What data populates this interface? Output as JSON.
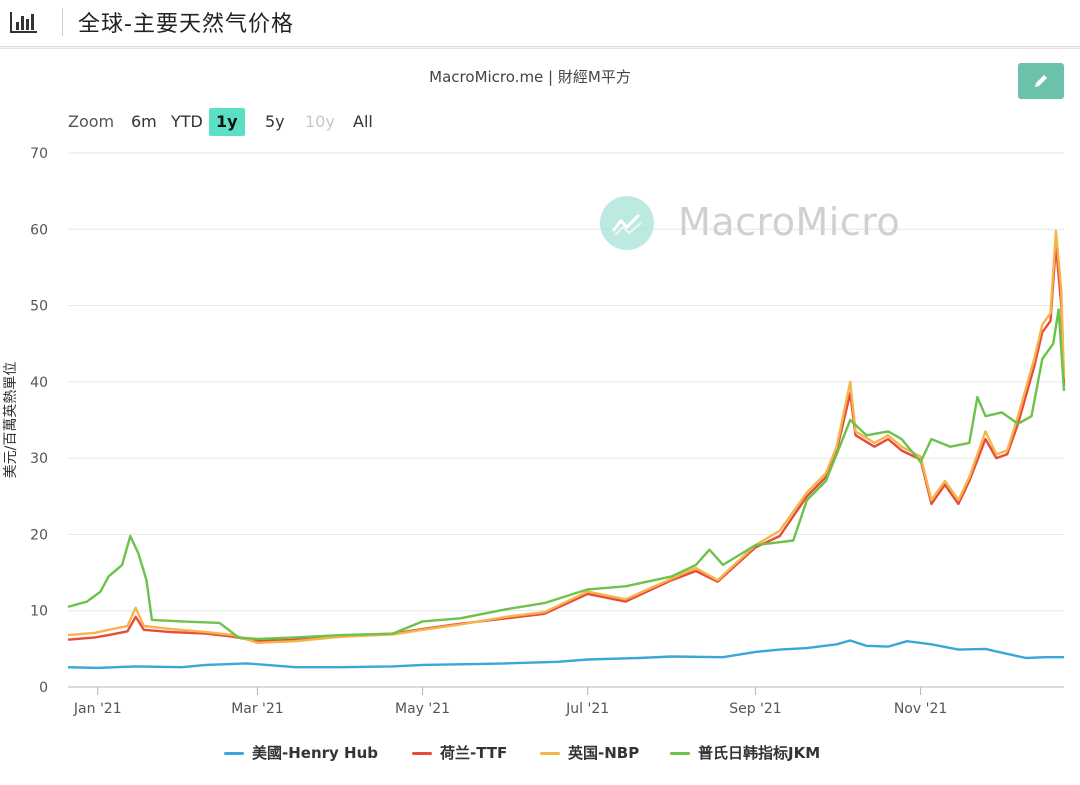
{
  "header": {
    "title": "全球-主要天然气价格",
    "icon": "bar-chart-icon"
  },
  "source": "MacroMicro.me | 財經M平方",
  "watermark": "MacroMicro",
  "zoom": {
    "label": "Zoom",
    "buttons": [
      {
        "label": "6m",
        "state": "normal"
      },
      {
        "label": "YTD",
        "state": "normal"
      },
      {
        "label": "1y",
        "state": "active"
      },
      {
        "label": "5y",
        "state": "normal"
      },
      {
        "label": "10y",
        "state": "disabled"
      },
      {
        "label": "All",
        "state": "normal"
      }
    ]
  },
  "chart_data": {
    "type": "line",
    "ylabel": "美元/百萬英熱單位",
    "ylim": [
      0,
      70
    ],
    "yticks": [
      0,
      10,
      20,
      30,
      40,
      50,
      60,
      70
    ],
    "x_range": [
      "2020-12-21",
      "2021-12-24"
    ],
    "xticks": [
      {
        "date": "2021-01-01",
        "label": "Jan '21"
      },
      {
        "date": "2021-03-01",
        "label": "Mar '21"
      },
      {
        "date": "2021-05-01",
        "label": "May '21"
      },
      {
        "date": "2021-07-01",
        "label": "Jul '21"
      },
      {
        "date": "2021-09-01",
        "label": "Sep '21"
      },
      {
        "date": "2021-11-01",
        "label": "Nov '21"
      }
    ],
    "grid": true,
    "legend_position": "bottom",
    "series": [
      {
        "name": "美國-Henry Hub",
        "color": "#3aa7d9",
        "points": [
          [
            "2020-12-21",
            2.6
          ],
          [
            "2021-01-01",
            2.5
          ],
          [
            "2021-01-15",
            2.7
          ],
          [
            "2021-02-01",
            2.6
          ],
          [
            "2021-02-10",
            2.9
          ],
          [
            "2021-02-25",
            3.1
          ],
          [
            "2021-03-15",
            2.6
          ],
          [
            "2021-04-01",
            2.6
          ],
          [
            "2021-04-20",
            2.7
          ],
          [
            "2021-05-01",
            2.9
          ],
          [
            "2021-05-20",
            3.0
          ],
          [
            "2021-06-01",
            3.1
          ],
          [
            "2021-06-20",
            3.3
          ],
          [
            "2021-07-01",
            3.6
          ],
          [
            "2021-07-20",
            3.8
          ],
          [
            "2021-08-01",
            4.0
          ],
          [
            "2021-08-20",
            3.9
          ],
          [
            "2021-09-01",
            4.6
          ],
          [
            "2021-09-10",
            4.9
          ],
          [
            "2021-09-20",
            5.1
          ],
          [
            "2021-10-01",
            5.6
          ],
          [
            "2021-10-06",
            6.1
          ],
          [
            "2021-10-12",
            5.4
          ],
          [
            "2021-10-20",
            5.3
          ],
          [
            "2021-10-27",
            6.0
          ],
          [
            "2021-11-05",
            5.6
          ],
          [
            "2021-11-15",
            4.9
          ],
          [
            "2021-11-25",
            5.0
          ],
          [
            "2021-12-01",
            4.5
          ],
          [
            "2021-12-10",
            3.8
          ],
          [
            "2021-12-17",
            3.9
          ],
          [
            "2021-12-24",
            3.9
          ]
        ]
      },
      {
        "name": "荷兰-TTF",
        "color": "#e84b3c",
        "points": [
          [
            "2020-12-21",
            6.2
          ],
          [
            "2020-12-31",
            6.5
          ],
          [
            "2021-01-05",
            6.8
          ],
          [
            "2021-01-12",
            7.3
          ],
          [
            "2021-01-15",
            9.2
          ],
          [
            "2021-01-18",
            7.5
          ],
          [
            "2021-01-28",
            7.2
          ],
          [
            "2021-02-10",
            7.0
          ],
          [
            "2021-02-20",
            6.6
          ],
          [
            "2021-03-01",
            6.0
          ],
          [
            "2021-03-15",
            6.2
          ],
          [
            "2021-04-01",
            6.6
          ],
          [
            "2021-04-20",
            7.0
          ],
          [
            "2021-05-01",
            7.6
          ],
          [
            "2021-05-15",
            8.3
          ],
          [
            "2021-06-01",
            9.0
          ],
          [
            "2021-06-15",
            9.6
          ],
          [
            "2021-07-01",
            12.2
          ],
          [
            "2021-07-15",
            11.2
          ],
          [
            "2021-08-01",
            14.0
          ],
          [
            "2021-08-10",
            15.2
          ],
          [
            "2021-08-18",
            13.8
          ],
          [
            "2021-09-01",
            18.3
          ],
          [
            "2021-09-10",
            19.8
          ],
          [
            "2021-09-20",
            25.0
          ],
          [
            "2021-09-27",
            27.5
          ],
          [
            "2021-10-01",
            31.0
          ],
          [
            "2021-10-06",
            38.5
          ],
          [
            "2021-10-08",
            33.0
          ],
          [
            "2021-10-15",
            31.5
          ],
          [
            "2021-10-20",
            32.5
          ],
          [
            "2021-10-25",
            31.0
          ],
          [
            "2021-11-01",
            29.8
          ],
          [
            "2021-11-05",
            24.0
          ],
          [
            "2021-11-10",
            26.5
          ],
          [
            "2021-11-15",
            24.0
          ],
          [
            "2021-11-19",
            27.0
          ],
          [
            "2021-11-25",
            32.5
          ],
          [
            "2021-11-29",
            30.0
          ],
          [
            "2021-12-03",
            30.5
          ],
          [
            "2021-12-07",
            34.5
          ],
          [
            "2021-12-13",
            42.0
          ],
          [
            "2021-12-16",
            46.5
          ],
          [
            "2021-12-19",
            48.0
          ],
          [
            "2021-12-21",
            58.0
          ],
          [
            "2021-12-23",
            50.0
          ],
          [
            "2021-12-24",
            39.5
          ]
        ]
      },
      {
        "name": "英国-NBP",
        "color": "#f4b54b",
        "points": [
          [
            "2020-12-21",
            6.8
          ],
          [
            "2020-12-31",
            7.1
          ],
          [
            "2021-01-05",
            7.5
          ],
          [
            "2021-01-12",
            8.0
          ],
          [
            "2021-01-15",
            10.4
          ],
          [
            "2021-01-18",
            8.0
          ],
          [
            "2021-01-28",
            7.6
          ],
          [
            "2021-02-10",
            7.2
          ],
          [
            "2021-02-20",
            6.8
          ],
          [
            "2021-03-01",
            5.8
          ],
          [
            "2021-03-15",
            6.0
          ],
          [
            "2021-04-01",
            6.6
          ],
          [
            "2021-04-20",
            6.9
          ],
          [
            "2021-05-01",
            7.5
          ],
          [
            "2021-05-15",
            8.2
          ],
          [
            "2021-06-01",
            9.2
          ],
          [
            "2021-06-15",
            9.8
          ],
          [
            "2021-07-01",
            12.5
          ],
          [
            "2021-07-15",
            11.5
          ],
          [
            "2021-08-01",
            14.2
          ],
          [
            "2021-08-10",
            15.6
          ],
          [
            "2021-08-18",
            14.0
          ],
          [
            "2021-09-01",
            18.6
          ],
          [
            "2021-09-10",
            20.5
          ],
          [
            "2021-09-20",
            25.5
          ],
          [
            "2021-09-27",
            28.0
          ],
          [
            "2021-10-01",
            31.5
          ],
          [
            "2021-10-06",
            40.0
          ],
          [
            "2021-10-08",
            33.5
          ],
          [
            "2021-10-15",
            32.0
          ],
          [
            "2021-10-20",
            33.0
          ],
          [
            "2021-10-25",
            31.5
          ],
          [
            "2021-11-01",
            30.2
          ],
          [
            "2021-11-05",
            24.5
          ],
          [
            "2021-11-10",
            27.0
          ],
          [
            "2021-11-15",
            24.5
          ],
          [
            "2021-11-19",
            27.5
          ],
          [
            "2021-11-25",
            33.5
          ],
          [
            "2021-11-29",
            30.5
          ],
          [
            "2021-12-03",
            31.0
          ],
          [
            "2021-12-07",
            35.5
          ],
          [
            "2021-12-13",
            43.0
          ],
          [
            "2021-12-16",
            47.5
          ],
          [
            "2021-12-19",
            49.0
          ],
          [
            "2021-12-21",
            59.8
          ],
          [
            "2021-12-23",
            52.0
          ],
          [
            "2021-12-24",
            40.5
          ]
        ]
      },
      {
        "name": "普氏日韩指标JKM",
        "color": "#6cc24a",
        "points": [
          [
            "2020-12-21",
            10.5
          ],
          [
            "2020-12-28",
            11.2
          ],
          [
            "2021-01-02",
            12.5
          ],
          [
            "2021-01-05",
            14.5
          ],
          [
            "2021-01-10",
            16.0
          ],
          [
            "2021-01-13",
            19.8
          ],
          [
            "2021-01-16",
            17.5
          ],
          [
            "2021-01-19",
            14.0
          ],
          [
            "2021-01-21",
            8.8
          ],
          [
            "2021-02-01",
            8.6
          ],
          [
            "2021-02-15",
            8.4
          ],
          [
            "2021-02-22",
            6.5
          ],
          [
            "2021-03-01",
            6.3
          ],
          [
            "2021-03-15",
            6.5
          ],
          [
            "2021-04-01",
            6.8
          ],
          [
            "2021-04-20",
            7.0
          ],
          [
            "2021-05-01",
            8.6
          ],
          [
            "2021-05-15",
            9.0
          ],
          [
            "2021-06-01",
            10.2
          ],
          [
            "2021-06-15",
            11.0
          ],
          [
            "2021-07-01",
            12.8
          ],
          [
            "2021-07-15",
            13.2
          ],
          [
            "2021-08-01",
            14.5
          ],
          [
            "2021-08-10",
            16.0
          ],
          [
            "2021-08-15",
            18.0
          ],
          [
            "2021-08-20",
            16.0
          ],
          [
            "2021-09-01",
            18.6
          ],
          [
            "2021-09-15",
            19.2
          ],
          [
            "2021-09-20",
            24.5
          ],
          [
            "2021-09-27",
            27.0
          ],
          [
            "2021-10-01",
            30.5
          ],
          [
            "2021-10-06",
            35.0
          ],
          [
            "2021-10-12",
            33.0
          ],
          [
            "2021-10-20",
            33.5
          ],
          [
            "2021-10-25",
            32.5
          ],
          [
            "2021-11-01",
            29.5
          ],
          [
            "2021-11-05",
            32.5
          ],
          [
            "2021-11-12",
            31.5
          ],
          [
            "2021-11-19",
            32.0
          ],
          [
            "2021-11-22",
            38.0
          ],
          [
            "2021-11-25",
            35.5
          ],
          [
            "2021-12-01",
            36.0
          ],
          [
            "2021-12-07",
            34.5
          ],
          [
            "2021-12-12",
            35.5
          ],
          [
            "2021-12-16",
            43.0
          ],
          [
            "2021-12-20",
            45.0
          ],
          [
            "2021-12-22",
            49.5
          ],
          [
            "2021-12-24",
            38.8
          ]
        ]
      }
    ]
  }
}
